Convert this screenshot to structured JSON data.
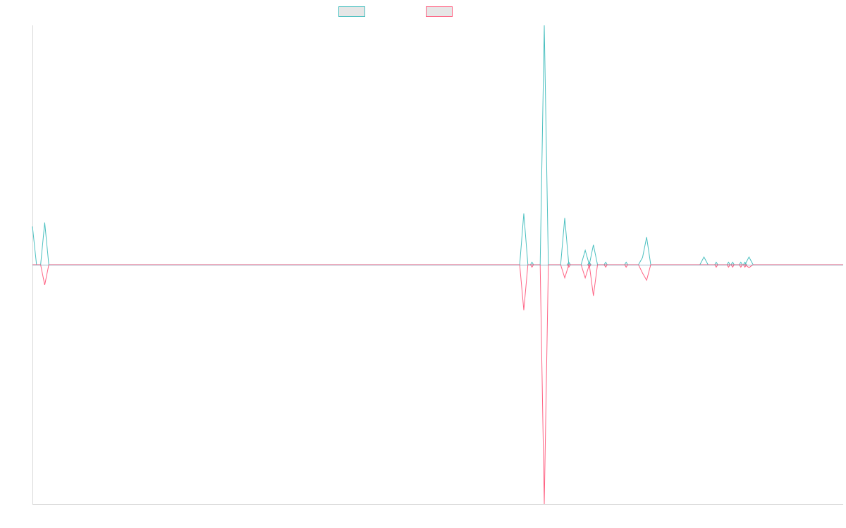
{
  "legend": {
    "series_a": "",
    "series_b": ""
  },
  "colors": {
    "series_a": "#4bc0c0",
    "series_b": "#ff6384",
    "swatch_fill": "#e6e6e6",
    "axis": "#d9d9d9",
    "baseline": "#5b8fa8"
  },
  "chart_data": {
    "type": "line",
    "title": "",
    "xlabel": "",
    "ylabel": "",
    "grid": false,
    "legend_position": "top-center",
    "ylim": [
      -1,
      1
    ],
    "x_count": 199,
    "series": [
      {
        "name": "",
        "color": "#4bc0c0",
        "sign": 1,
        "spikes": [
          [
            0,
            0.16
          ],
          [
            3,
            0.176
          ],
          [
            120,
            0.214
          ],
          [
            125,
            1.0
          ],
          [
            130,
            0.195
          ],
          [
            135,
            0.06
          ],
          [
            137,
            0.083
          ],
          [
            149,
            0.03
          ],
          [
            150,
            0.115
          ],
          [
            164,
            0.032
          ],
          [
            175,
            0.032
          ]
        ],
        "markers": [
          122,
          131,
          136,
          140,
          145,
          167,
          170,
          171,
          173,
          174
        ]
      },
      {
        "name": "",
        "color": "#ff6384",
        "sign": -1,
        "spikes": [
          [
            3,
            0.085
          ],
          [
            120,
            0.19
          ],
          [
            125,
            1.0
          ],
          [
            130,
            0.055
          ],
          [
            135,
            0.055
          ],
          [
            137,
            0.13
          ],
          [
            149,
            0.035
          ],
          [
            150,
            0.065
          ],
          [
            175,
            0.012
          ]
        ],
        "markers": [
          122,
          131,
          136,
          140,
          145,
          167,
          170,
          171,
          173,
          174
        ]
      }
    ]
  }
}
